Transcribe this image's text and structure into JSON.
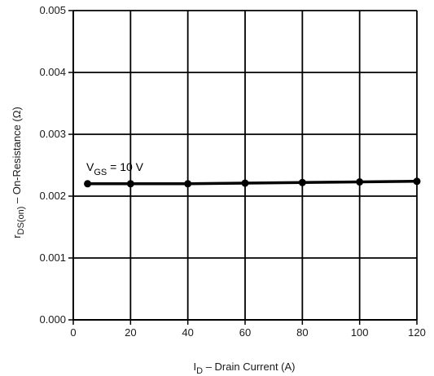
{
  "chart_data": {
    "type": "line",
    "x": [
      5,
      20,
      40,
      60,
      80,
      100,
      120
    ],
    "series": [
      {
        "values": [
          0.0022,
          0.0022,
          0.0022,
          0.00221,
          0.00222,
          0.00223,
          0.00224
        ]
      }
    ],
    "xlim": [
      0,
      120
    ],
    "ylim": [
      0,
      0.005
    ],
    "xticks": [
      "0",
      "20",
      "40",
      "60",
      "80",
      "100",
      "120"
    ],
    "yticks": [
      "0.000",
      "0.001",
      "0.002",
      "0.003",
      "0.004",
      "0.005"
    ],
    "xlabel": {
      "main": "I",
      "sub": "D",
      "rest": " – Drain Current (A)"
    },
    "ylabel": {
      "main": "r",
      "sub": "DS(on)",
      "rest": " – On-Resistance (Ω)"
    },
    "annotation": {
      "main": "V",
      "sub": "GS",
      "rest": " = 10 V"
    },
    "grid": true,
    "colors": {
      "line": "#000000",
      "grid": "#000000",
      "axes": "#000000"
    }
  }
}
